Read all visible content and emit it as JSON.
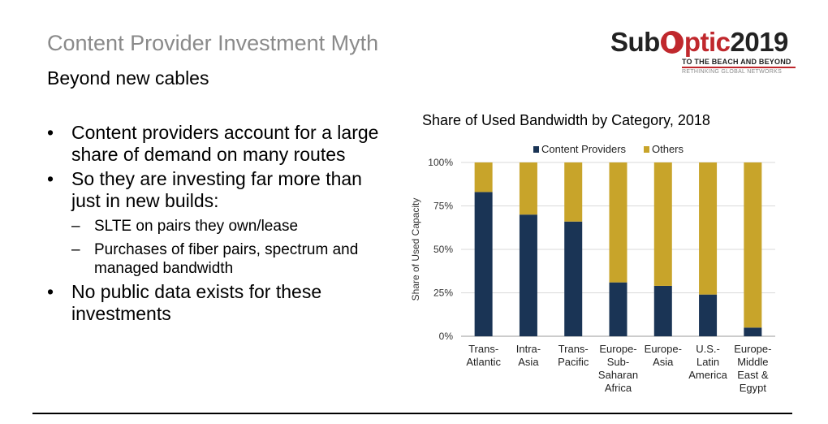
{
  "slide": {
    "title": "Content Provider Investment Myth",
    "subtitle": "Beyond new cables"
  },
  "logo": {
    "text_sub": "Sub",
    "text_optic": "ptic",
    "text_year": "2019",
    "tagline": "TO THE BEACH AND BEYOND",
    "tagline2": "RETHINKING GLOBAL NETWORKS"
  },
  "bullets": {
    "b1": "Content providers account for a large share of demand on many routes",
    "b2": "So they are investing far more than just in new builds:",
    "b2a": "SLTE on pairs they own/lease",
    "b2b": "Purchases of fiber pairs, spectrum and managed bandwidth",
    "b3": "No public data exists for these investments"
  },
  "colors": {
    "content_providers": "#1a3455",
    "others": "#c8a42a",
    "grid": "#d9d9d9",
    "axis": "#999999"
  },
  "chart_data": {
    "type": "bar",
    "stacked": true,
    "title": "Share of Used Bandwidth by Category, 2018",
    "ylabel": "Share of Used Capacity",
    "xlabel": "",
    "ylim": [
      0,
      100
    ],
    "yticks": [
      "0%",
      "25%",
      "50%",
      "75%",
      "100%"
    ],
    "ytick_values": [
      0,
      25,
      50,
      75,
      100
    ],
    "categories": [
      [
        "Trans-",
        "Atlantic"
      ],
      [
        "Intra-",
        "Asia"
      ],
      [
        "Trans-",
        "Pacific"
      ],
      [
        "Europe-",
        "Sub-",
        "Saharan",
        "Africa"
      ],
      [
        "Europe-",
        "Asia"
      ],
      [
        "U.S.-",
        "Latin",
        "America"
      ],
      [
        "Europe-",
        "Middle",
        "East &",
        "Egypt"
      ]
    ],
    "series": [
      {
        "name": "Content Providers",
        "values": [
          83,
          70,
          66,
          31,
          29,
          24,
          5
        ]
      },
      {
        "name": "Others",
        "values": [
          17,
          30,
          34,
          69,
          71,
          76,
          95
        ]
      }
    ],
    "legend": "top"
  }
}
